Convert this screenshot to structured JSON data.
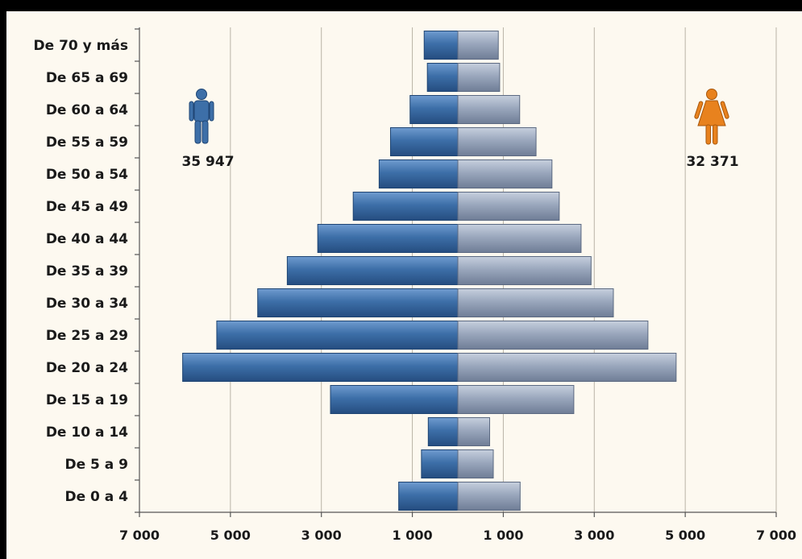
{
  "chart_data": {
    "type": "bar",
    "orientation": "horizontal-population-pyramid",
    "categories": [
      "De 0 a 4",
      "De 5 a 9",
      "De 10 a 14",
      "De 15 a 19",
      "De 20 a 24",
      "De 25 a 29",
      "De 30 a 34",
      "De 35 a 39",
      "De 40 a 44",
      "De 45 a 49",
      "De 50 a 54",
      "De 55 a 59",
      "De 60 a 64",
      "De 65 a 69",
      "De 70 y más"
    ],
    "series": [
      {
        "values": [
          1300,
          800,
          650,
          2800,
          6050,
          5300,
          4400,
          3750,
          3080,
          2300,
          1730,
          1480,
          1050,
          670,
          740
        ],
        "color": "#3d6fa8",
        "icon": "male-icon",
        "total": "35 947"
      },
      {
        "values": [
          1370,
          780,
          700,
          2550,
          4800,
          4180,
          3420,
          2930,
          2710,
          2230,
          2070,
          1720,
          1360,
          920,
          890
        ],
        "color": "#8f9cb4",
        "icon": "female-icon",
        "total": "32 371"
      }
    ],
    "xlim": [
      -7000,
      7000
    ],
    "xticks": [
      -7000,
      -5000,
      -3000,
      -1000,
      1000,
      3000,
      5000,
      7000
    ],
    "xtick_labels": [
      "7 000",
      "5 000",
      "3 000",
      "1 000",
      "1 000",
      "3 000",
      "5 000",
      "7 000"
    ],
    "grid": "vertical",
    "background": "#fdf9f0",
    "male_icon_color": "#3d6fa8",
    "female_icon_color": "#e8821e"
  }
}
